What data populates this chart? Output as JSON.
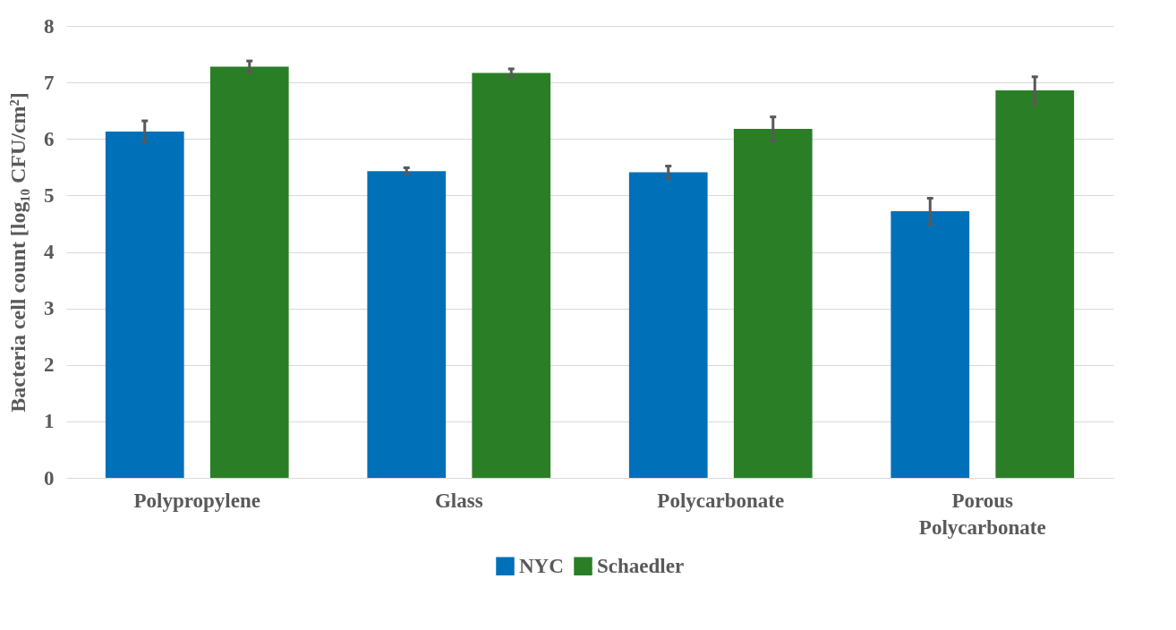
{
  "chart_data": {
    "type": "bar",
    "ylabel": "Bacteria cell count [log₁₀ CFU/cm²]",
    "categories": [
      "Polypropylene",
      "Glass",
      "Polycarbonate",
      "Porous Polycarbonate"
    ],
    "series": [
      {
        "name": "NYC",
        "color": "#0070b8",
        "values": [
          6.13,
          5.43,
          5.41,
          4.72
        ],
        "errors": [
          0.19,
          0.06,
          0.11,
          0.23
        ]
      },
      {
        "name": "Schaedler",
        "color": "#2a7f26",
        "values": [
          7.28,
          7.17,
          6.18,
          6.86
        ],
        "errors": [
          0.1,
          0.07,
          0.21,
          0.24
        ]
      }
    ],
    "ylim": [
      0,
      8
    ],
    "yticks": [
      0,
      1,
      2,
      3,
      4,
      5,
      6,
      7,
      8
    ],
    "grid": "y",
    "legend": "bottom"
  }
}
